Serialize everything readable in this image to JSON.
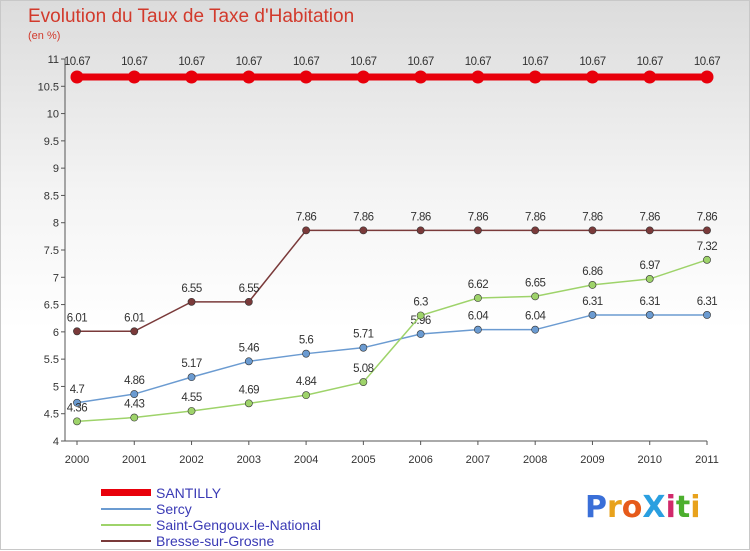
{
  "title": "Evolution du Taux de Taxe d'Habitation",
  "subtitle": "(en %)",
  "logo": "ProXiti",
  "chart_data": {
    "type": "line",
    "x": [
      2000,
      2001,
      2002,
      2003,
      2004,
      2005,
      2006,
      2007,
      2008,
      2009,
      2010,
      2011
    ],
    "ylim": [
      4,
      11
    ],
    "yticks": [
      "4",
      "4.5",
      "5",
      "5.5",
      "6",
      "6.5",
      "7",
      "7.5",
      "8",
      "8.5",
      "9",
      "9.5",
      "10",
      "10.5",
      "11"
    ],
    "grid": false,
    "legend_position": "bottom-left",
    "series": [
      {
        "name": "SANTILLY",
        "color": "#e8000b",
        "values": [
          10.67,
          10.67,
          10.67,
          10.67,
          10.67,
          10.67,
          10.67,
          10.67,
          10.67,
          10.67,
          10.67,
          10.67
        ],
        "labels": [
          "10.67",
          "10.67",
          "10.67",
          "10.67",
          "10.67",
          "10.67",
          "10.67",
          "10.67",
          "10.67",
          "10.67",
          "10.67",
          "10.67"
        ]
      },
      {
        "name": "Sercy",
        "color": "#6b9bd1",
        "values": [
          4.7,
          4.86,
          5.17,
          5.46,
          5.6,
          5.71,
          5.96,
          6.04,
          6.04,
          6.31,
          6.31,
          6.31
        ],
        "labels": [
          "4.7",
          "4.86",
          "5.17",
          "5.46",
          "5.6",
          "5.71",
          "5.96",
          "6.04",
          "6.04",
          "6.31",
          "6.31",
          "6.31"
        ]
      },
      {
        "name": "Saint-Gengoux-le-National",
        "color": "#9ed36a",
        "values": [
          4.36,
          4.43,
          4.55,
          4.69,
          4.84,
          5.08,
          6.3,
          6.62,
          6.65,
          6.86,
          6.97,
          7.32
        ],
        "labels": [
          "4.36",
          "4.43",
          "4.55",
          "4.69",
          "4.84",
          "5.08",
          "6.3",
          "6.62",
          "6.65",
          "6.86",
          "6.97",
          "7.32"
        ]
      },
      {
        "name": "Bresse-sur-Grosne",
        "color": "#7a3a3a",
        "values": [
          6.01,
          6.01,
          6.55,
          6.55,
          7.86,
          7.86,
          7.86,
          7.86,
          7.86,
          7.86,
          7.86,
          7.86
        ],
        "labels": [
          "6.01",
          "6.01",
          "6.55",
          "6.55",
          "7.86",
          "7.86",
          "7.86",
          "7.86",
          "7.86",
          "7.86",
          "7.86",
          "7.86"
        ]
      }
    ]
  }
}
